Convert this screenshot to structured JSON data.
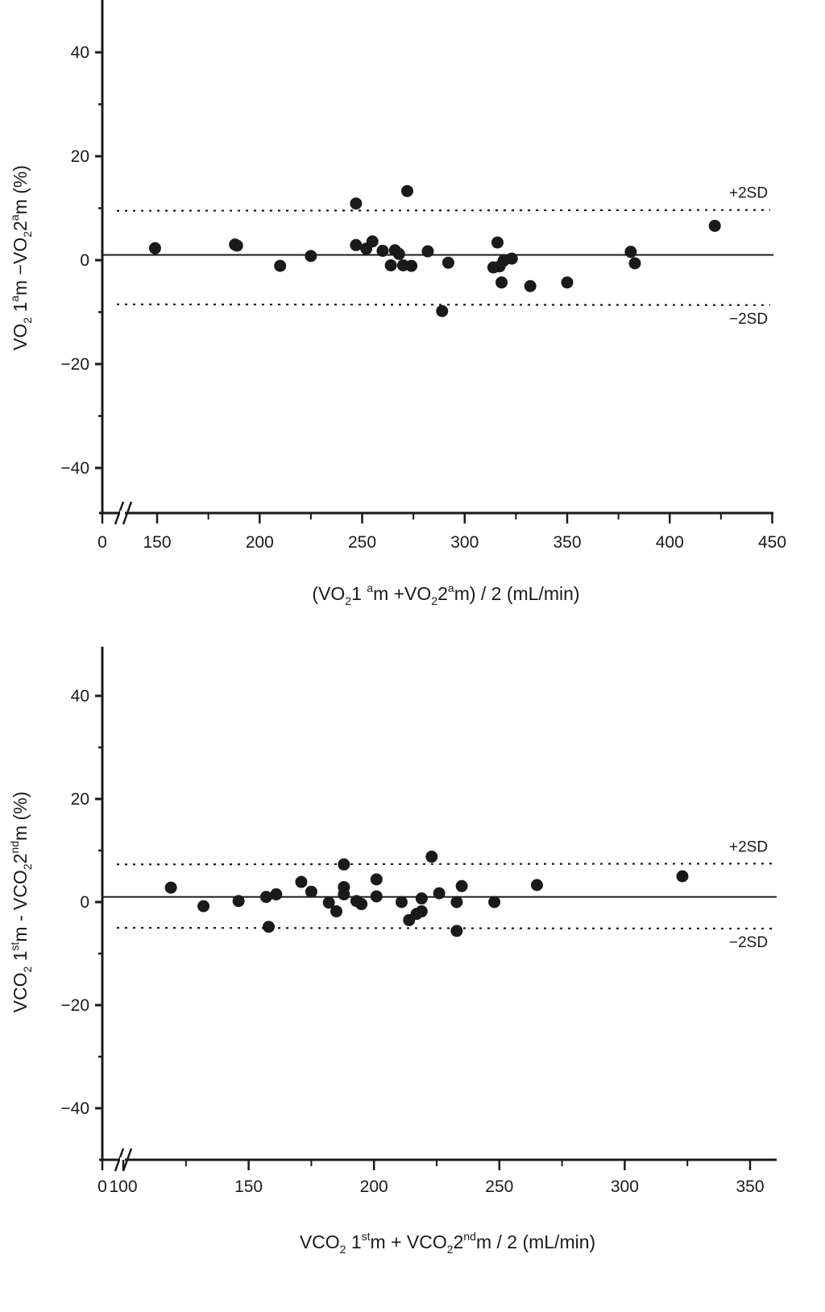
{
  "chart_data": [
    {
      "type": "scatter",
      "title": "",
      "xlabel_parts": [
        "(VO",
        "2",
        "1 ",
        "a",
        "m +VO",
        "2",
        "2",
        "a",
        "m) / 2 (mL/min)"
      ],
      "xlabel": "(VO2 1 am +VO2 2am) / 2 (mL/min)",
      "ylabel_parts": [
        "VO",
        "2",
        " 1",
        "a",
        "m −VO",
        "2",
        "2",
        "a",
        "m  (%)"
      ],
      "ylabel": "VO2 1am −VO2 2am (%)",
      "xlim": [
        0,
        450
      ],
      "x_break": [
        0,
        150
      ],
      "ylim": [
        -48,
        50
      ],
      "x_ticks": [
        0,
        150,
        200,
        250,
        300,
        350,
        400,
        450
      ],
      "x_tick_labels": [
        "0",
        "150",
        "200",
        "250",
        "300",
        "350",
        "400",
        "450"
      ],
      "y_ticks": [
        40,
        20,
        0,
        -20,
        -40
      ],
      "y_tick_labels": [
        "40",
        "20",
        "0",
        "−20",
        "−40"
      ],
      "mean_line": 1.0,
      "upper_sd": 9.5,
      "lower_sd": -8.5,
      "upper_sd_label": "+2SD",
      "lower_sd_label": "−2SD",
      "grid": false,
      "points": [
        {
          "x": 149,
          "y": 2.3
        },
        {
          "x": 188,
          "y": 3.0
        },
        {
          "x": 189,
          "y": 2.8
        },
        {
          "x": 210,
          "y": -1.1
        },
        {
          "x": 225,
          "y": 0.8
        },
        {
          "x": 247,
          "y": 10.9
        },
        {
          "x": 247,
          "y": 2.9
        },
        {
          "x": 252,
          "y": 2.2
        },
        {
          "x": 255,
          "y": 3.6
        },
        {
          "x": 260,
          "y": 1.8
        },
        {
          "x": 264,
          "y": -1.0
        },
        {
          "x": 266,
          "y": 1.9
        },
        {
          "x": 268,
          "y": 1.2
        },
        {
          "x": 270,
          "y": -1.0
        },
        {
          "x": 272,
          "y": 13.3
        },
        {
          "x": 274,
          "y": -1.1
        },
        {
          "x": 282,
          "y": 1.7
        },
        {
          "x": 289,
          "y": -9.8
        },
        {
          "x": 292,
          "y": -0.5
        },
        {
          "x": 314,
          "y": -1.4
        },
        {
          "x": 316,
          "y": 3.4
        },
        {
          "x": 317,
          "y": -1.2
        },
        {
          "x": 318,
          "y": -4.3
        },
        {
          "x": 319,
          "y": -0.1
        },
        {
          "x": 323,
          "y": 0.3
        },
        {
          "x": 332,
          "y": -5.0
        },
        {
          "x": 350,
          "y": -4.3
        },
        {
          "x": 381,
          "y": 1.6
        },
        {
          "x": 383,
          "y": -0.6
        },
        {
          "x": 422,
          "y": 6.6
        }
      ]
    },
    {
      "type": "scatter",
      "title": "",
      "xlabel_parts": [
        "VCO",
        "2",
        " 1",
        "st",
        "m + VCO",
        "2",
        "2",
        "nd",
        "m / 2 (mL/min)"
      ],
      "xlabel": "VCO2 1stm + VCO2 2ndm / 2 (mL/min)",
      "ylabel_parts": [
        "VCO",
        "2",
        " 1",
        "st",
        "m - VCO",
        "2",
        "2",
        "nd",
        "m (%)"
      ],
      "ylabel": "VCO2 1stm - VCO2 2ndm (%)",
      "xlim": [
        0,
        350
      ],
      "x_break": [
        0,
        100
      ],
      "ylim": [
        -50,
        50
      ],
      "x_ticks": [
        0,
        100,
        150,
        200,
        250,
        300,
        350
      ],
      "x_tick_labels": [
        "0",
        "100",
        "150",
        "200",
        "250",
        "300",
        "350"
      ],
      "y_ticks": [
        40,
        20,
        0,
        -20,
        -40
      ],
      "y_tick_labels": [
        "40",
        "20",
        "0",
        "−20",
        "−40"
      ],
      "mean_line": 1.0,
      "upper_sd": 7.3,
      "lower_sd": -5.0,
      "upper_sd_label": "+2SD",
      "lower_sd_label": "−2SD",
      "grid": false,
      "points": [
        {
          "x": 119,
          "y": 2.8
        },
        {
          "x": 132,
          "y": -0.8
        },
        {
          "x": 146,
          "y": 0.2
        },
        {
          "x": 157,
          "y": 1.0
        },
        {
          "x": 158,
          "y": -4.8
        },
        {
          "x": 161,
          "y": 1.5
        },
        {
          "x": 171,
          "y": 3.9
        },
        {
          "x": 175,
          "y": 2.0
        },
        {
          "x": 182,
          "y": -0.1
        },
        {
          "x": 185,
          "y": -1.8
        },
        {
          "x": 188,
          "y": 7.3
        },
        {
          "x": 188,
          "y": 2.9
        },
        {
          "x": 188,
          "y": 1.5
        },
        {
          "x": 193,
          "y": 0.2
        },
        {
          "x": 195,
          "y": -0.4
        },
        {
          "x": 201,
          "y": 4.4
        },
        {
          "x": 201,
          "y": 1.1
        },
        {
          "x": 211,
          "y": 0.0
        },
        {
          "x": 214,
          "y": -3.5
        },
        {
          "x": 217,
          "y": -2.3
        },
        {
          "x": 219,
          "y": -1.8
        },
        {
          "x": 219,
          "y": 0.7
        },
        {
          "x": 223,
          "y": 8.8
        },
        {
          "x": 226,
          "y": 1.7
        },
        {
          "x": 233,
          "y": -5.6
        },
        {
          "x": 233,
          "y": 0.0
        },
        {
          "x": 235,
          "y": 3.1
        },
        {
          "x": 248,
          "y": 0.0
        },
        {
          "x": 265,
          "y": 3.3
        },
        {
          "x": 323,
          "y": 5.0
        }
      ]
    }
  ]
}
